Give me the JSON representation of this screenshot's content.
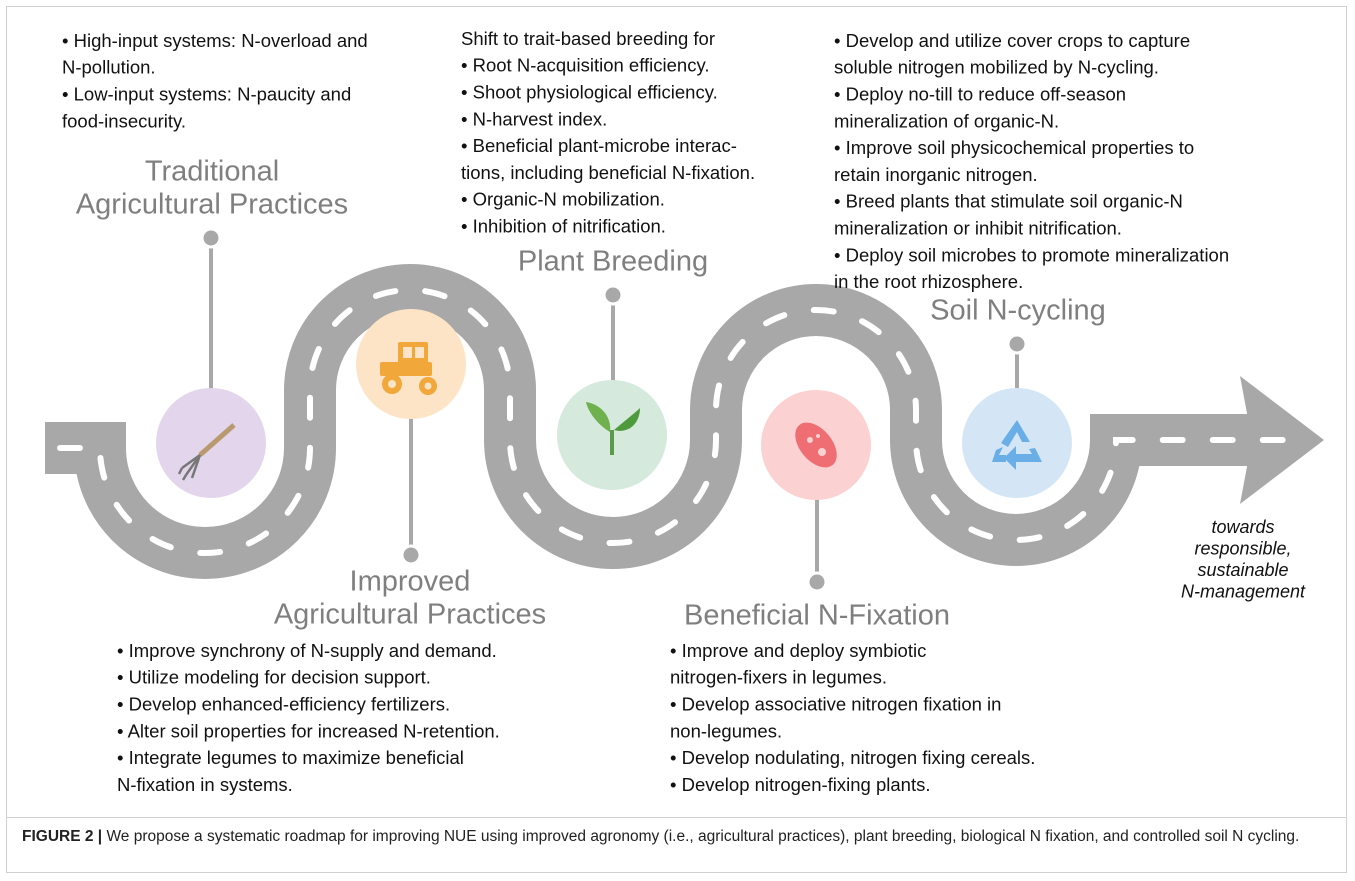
{
  "stages": [
    {
      "title": [
        "Traditional",
        "Agricultural Practices"
      ],
      "lines": [
        "• High-input systems: N-overload and",
        "N-pollution.",
        "• Low-input systems: N-paucity and",
        "food-insecurity."
      ]
    },
    {
      "title": [
        "Improved",
        "Agricultural Practices"
      ],
      "lines": [
        "• Improve synchrony of N-supply and demand.",
        "• Utilize modeling for decision support.",
        "• Develop enhanced-efficiency fertilizers.",
        "• Alter soil properties for increased N-retention.",
        "• Integrate legumes to maximize beneficial",
        "N-fixation in systems."
      ]
    },
    {
      "title": [
        "Plant Breeding"
      ],
      "lines": [
        "Shift to trait-based breeding for",
        "• Root N-acquisition efficiency.",
        "• Shoot physiological efficiency.",
        "• N-harvest index.",
        "• Beneficial plant-microbe interac-",
        "tions, including beneficial N-fixation.",
        "• Organic-N mobilization.",
        "• Inhibition of nitrification."
      ]
    },
    {
      "title": [
        "Beneficial N-Fixation"
      ],
      "lines": [
        "• Improve and deploy symbiotic",
        "nitrogen-fixers in legumes.",
        "• Develop associative nitrogen fixation in",
        "non-legumes.",
        "• Develop nodulating, nitrogen fixing cereals.",
        "• Develop nitrogen-fixing plants."
      ]
    },
    {
      "title": [
        "Soil N-cycling"
      ],
      "lines": [
        "• Develop and utilize cover crops to capture",
        "soluble nitrogen mobilized by N-cycling.",
        "• Deploy no-till to reduce off-season",
        "mineralization of organic-N.",
        "• Improve soil physicochemical properties to",
        "retain inorganic nitrogen.",
        "• Breed plants that stimulate soil organic-N",
        "mineralization or inhibit nitrification.",
        "• Deploy soil microbes to promote mineralization",
        "in the root rhizosphere."
      ]
    }
  ],
  "destination": [
    "towards",
    "responsible,",
    "sustainable",
    "N-management"
  ],
  "caption": {
    "label": "FIGURE 2 |",
    "text": "We propose a systematic roadmap for improving NUE using improved agronomy (i.e., agricultural practices), plant breeding, biological N fixation, and controlled soil N cycling."
  }
}
